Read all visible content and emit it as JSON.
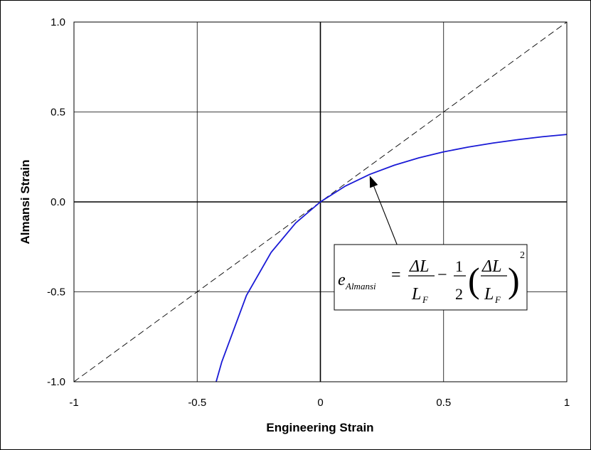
{
  "chart_data": {
    "type": "line",
    "title": "",
    "xlabel": "Engineering Strain",
    "ylabel": "Almansi Strain",
    "xlim": [
      -1,
      1
    ],
    "ylim": [
      -1,
      1
    ],
    "x_ticks": [
      -1,
      -0.5,
      0,
      0.5,
      1
    ],
    "x_tick_labels": [
      "-1",
      "-0.5",
      "0",
      "0.5",
      "1"
    ],
    "y_ticks": [
      -1,
      -0.5,
      0,
      0.5,
      1
    ],
    "y_tick_labels": [
      "-1.0",
      "-0.5",
      "0.0",
      "0.5",
      "1.0"
    ],
    "grid": true,
    "series": [
      {
        "style": "dashed",
        "color": "#000000",
        "x": [
          -1,
          1
        ],
        "y": [
          -1,
          1
        ]
      },
      {
        "style": "solid",
        "color": "#1a1ad6",
        "x": [
          -0.423,
          -0.4,
          -0.3,
          -0.2,
          -0.1,
          0,
          0.1,
          0.2,
          0.3,
          0.4,
          0.5,
          0.6,
          0.7,
          0.8,
          0.9,
          1.0
        ],
        "y": [
          -1.0,
          -0.889,
          -0.52,
          -0.281,
          -0.117,
          0,
          0.087,
          0.153,
          0.204,
          0.245,
          0.278,
          0.305,
          0.327,
          0.346,
          0.362,
          0.375
        ]
      }
    ],
    "annotation": {
      "target": [
        0.2,
        0.153
      ],
      "equation_text": "e_Almansi = ΔL/L_F − 1/2 (ΔL/L_F)^2",
      "parts": {
        "e": "e",
        "sub": "Almansi",
        "eq": "=",
        "dl": "ΔL",
        "l": "L",
        "f": "F",
        "minus": "−",
        "one": "1",
        "two": "2",
        "lparen": "(",
        "rparen": ")",
        "pow": "2"
      }
    }
  }
}
